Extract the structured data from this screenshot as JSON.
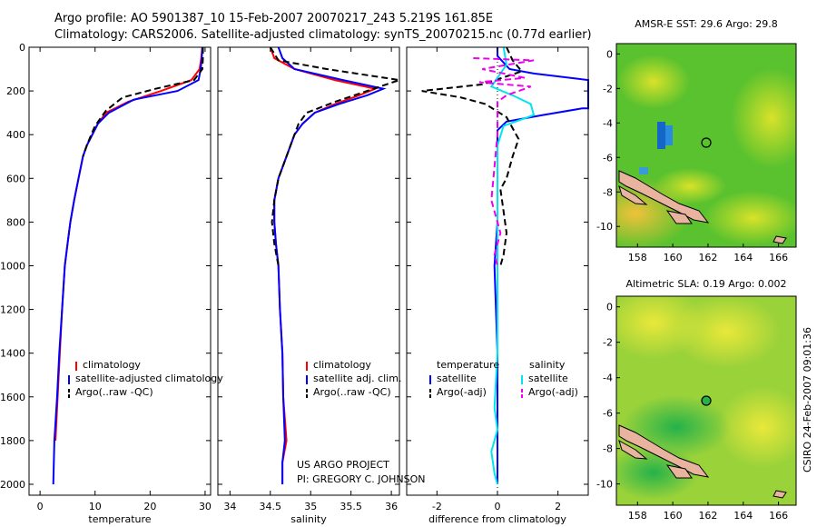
{
  "header": {
    "title_line1": "Argo profile: AO 5901387_10 15-Feb-2007 20070217_243 5.219S 161.85E",
    "title_line2": "Climatology: CARS2006. Satellite-adjusted climatology: synTS_20070215.nc (0.77d earlier)"
  },
  "credits": {
    "project": "US ARGO PROJECT",
    "pi": "PI: GREGORY C. JOHNSON",
    "timestamp": "CSIRO 24-Feb-2007 09:01:36"
  },
  "colors": {
    "climatology": "#ff0000",
    "satellite": "#0000ff",
    "argo": "#000000",
    "salinity_satellite": "#00e5ee",
    "salinity_argo": "#ee00ee"
  },
  "chart_data": [
    {
      "id": "temperature",
      "type": "line",
      "xlabel": "temperature",
      "ylabel": "",
      "xlim": [
        -2,
        31
      ],
      "ylim": [
        2050,
        0
      ],
      "xticks": [
        0,
        10,
        20,
        30
      ],
      "yticks": [
        0,
        200,
        400,
        600,
        800,
        1000,
        1200,
        1400,
        1600,
        1800,
        2000
      ],
      "legend": [
        "climatology",
        "satellite-adjusted climatology",
        "Argo(..raw -QC)"
      ],
      "series": [
        {
          "name": "climatology",
          "style": "solid",
          "colorKey": "climatology",
          "points": [
            [
              29.5,
              0
            ],
            [
              29.3,
              50
            ],
            [
              29,
              100
            ],
            [
              27.5,
              150
            ],
            [
              22,
              200
            ],
            [
              16,
              250
            ],
            [
              12,
              300
            ],
            [
              10.5,
              350
            ],
            [
              9.5,
              400
            ],
            [
              8.5,
              450
            ],
            [
              7.8,
              500
            ],
            [
              7,
              600
            ],
            [
              6.2,
              700
            ],
            [
              5.5,
              800
            ],
            [
              5,
              900
            ],
            [
              4.5,
              1000
            ],
            [
              4,
              1200
            ],
            [
              3.6,
              1400
            ],
            [
              3.2,
              1600
            ],
            [
              2.8,
              1800
            ]
          ]
        },
        {
          "name": "satellite-adjusted climatology",
          "style": "solid",
          "colorKey": "satellite",
          "points": [
            [
              29.5,
              0
            ],
            [
              29.4,
              50
            ],
            [
              29.2,
              100
            ],
            [
              28.8,
              150
            ],
            [
              25,
              200
            ],
            [
              17,
              240
            ],
            [
              12.5,
              300
            ],
            [
              10.5,
              350
            ],
            [
              9.5,
              400
            ],
            [
              8.5,
              450
            ],
            [
              7.8,
              500
            ],
            [
              7,
              600
            ],
            [
              6.2,
              700
            ],
            [
              5.5,
              800
            ],
            [
              5,
              900
            ],
            [
              4.5,
              1000
            ],
            [
              4,
              1200
            ],
            [
              3.5,
              1400
            ],
            [
              3.1,
              1600
            ],
            [
              2.6,
              1800
            ],
            [
              2.4,
              2000
            ]
          ]
        },
        {
          "name": "Argo(..raw -QC)",
          "style": "dashed",
          "colorKey": "argo",
          "points": [
            [
              29.6,
              0
            ],
            [
              29.6,
              50
            ],
            [
              29.5,
              100
            ],
            [
              28,
              150
            ],
            [
              21,
              190
            ],
            [
              15,
              230
            ],
            [
              12,
              290
            ],
            [
              10,
              360
            ],
            [
              9.3,
              400
            ],
            [
              8.5,
              450
            ],
            [
              7.8,
              500
            ]
          ]
        }
      ]
    },
    {
      "id": "salinity",
      "type": "line",
      "xlabel": "salinity",
      "ylabel": "",
      "xlim": [
        33.85,
        36.1
      ],
      "ylim": [
        2050,
        0
      ],
      "xticks": [
        34,
        34.5,
        35,
        35.5,
        36
      ],
      "legend": [
        "climatology",
        "satellite adj. clim.",
        "Argo(..raw -QC)"
      ],
      "series": [
        {
          "name": "climatology",
          "style": "solid",
          "colorKey": "climatology",
          "points": [
            [
              34.5,
              0
            ],
            [
              34.55,
              50
            ],
            [
              34.8,
              100
            ],
            [
              35.3,
              150
            ],
            [
              35.8,
              190
            ],
            [
              35.6,
              220
            ],
            [
              35.3,
              260
            ],
            [
              35.05,
              300
            ],
            [
              34.9,
              350
            ],
            [
              34.8,
              400
            ],
            [
              34.75,
              450
            ],
            [
              34.7,
              500
            ],
            [
              34.6,
              600
            ],
            [
              34.55,
              700
            ],
            [
              34.55,
              800
            ],
            [
              34.57,
              900
            ],
            [
              34.6,
              1000
            ],
            [
              34.62,
              1200
            ],
            [
              34.65,
              1400
            ],
            [
              34.66,
              1600
            ],
            [
              34.7,
              1800
            ],
            [
              34.65,
              1900
            ],
            [
              34.65,
              2000
            ]
          ]
        },
        {
          "name": "satellite adj. clim.",
          "style": "solid",
          "colorKey": "satellite",
          "points": [
            [
              34.6,
              0
            ],
            [
              34.65,
              50
            ],
            [
              34.8,
              100
            ],
            [
              35.4,
              150
            ],
            [
              35.9,
              190
            ],
            [
              35.7,
              220
            ],
            [
              35.35,
              260
            ],
            [
              35.05,
              300
            ],
            [
              34.9,
              350
            ],
            [
              34.8,
              400
            ],
            [
              34.75,
              450
            ],
            [
              34.7,
              500
            ],
            [
              34.6,
              600
            ],
            [
              34.55,
              700
            ],
            [
              34.55,
              800
            ],
            [
              34.57,
              900
            ],
            [
              34.6,
              1000
            ],
            [
              34.62,
              1200
            ],
            [
              34.65,
              1400
            ],
            [
              34.66,
              1600
            ],
            [
              34.68,
              1800
            ],
            [
              34.65,
              1900
            ],
            [
              34.65,
              2000
            ]
          ]
        },
        {
          "name": "Argo(..raw -QC)",
          "style": "dashed",
          "colorKey": "argo",
          "points": [
            [
              34.5,
              0
            ],
            [
              34.6,
              60
            ],
            [
              35.2,
              100
            ],
            [
              36.1,
              150
            ],
            [
              35.7,
              200
            ],
            [
              35.3,
              250
            ],
            [
              34.95,
              300
            ],
            [
              34.85,
              350
            ],
            [
              34.8,
              400
            ],
            [
              34.75,
              450
            ],
            [
              34.7,
              500
            ],
            [
              34.6,
              600
            ],
            [
              34.55,
              700
            ],
            [
              34.52,
              800
            ],
            [
              34.55,
              900
            ],
            [
              34.6,
              1000
            ]
          ]
        }
      ]
    },
    {
      "id": "difference",
      "type": "line",
      "xlabel": "difference from climatology",
      "ylabel": "",
      "xlim": [
        -3,
        3
      ],
      "ylim": [
        2050,
        0
      ],
      "xticks": [
        -2,
        0,
        2
      ],
      "legend_left_title": "temperature",
      "legend_right_title": "salinity",
      "legend_left": [
        "satellite",
        "Argo(-adj)"
      ],
      "legend_right": [
        "satellite",
        "Argo(-adj)"
      ],
      "series": [
        {
          "name": "temperature satellite",
          "style": "solid",
          "colorKey": "satellite",
          "points": [
            [
              0,
              0
            ],
            [
              0,
              40
            ],
            [
              0.4,
              100
            ],
            [
              1.2,
              120
            ],
            [
              3,
              150
            ],
            [
              3,
              280
            ],
            [
              2.8,
              280
            ],
            [
              1.5,
              310
            ],
            [
              0.3,
              340
            ],
            [
              0,
              380
            ],
            [
              0,
              500
            ],
            [
              0,
              800
            ],
            [
              -0.1,
              1000
            ],
            [
              0,
              1400
            ],
            [
              0,
              1800
            ],
            [
              0,
              2000
            ]
          ]
        },
        {
          "name": "temperature Argo(-adj)",
          "style": "dashed",
          "colorKey": "argo",
          "points": [
            [
              0.3,
              0
            ],
            [
              0.5,
              60
            ],
            [
              0.8,
              110
            ],
            [
              -0.5,
              170
            ],
            [
              -2.5,
              200
            ],
            [
              -1.2,
              230
            ],
            [
              -0.4,
              260
            ],
            [
              0.3,
              320
            ],
            [
              0.7,
              420
            ],
            [
              0.5,
              500
            ],
            [
              0.3,
              600
            ],
            [
              0.1,
              650
            ],
            [
              0.2,
              750
            ],
            [
              0.3,
              850
            ],
            [
              0.2,
              950
            ],
            [
              0.1,
              1000
            ]
          ]
        },
        {
          "name": "salinity satellite",
          "style": "solid",
          "colorKey": "salinity_satellite",
          "points": [
            [
              0.2,
              0
            ],
            [
              0.3,
              80
            ],
            [
              -0.2,
              180
            ],
            [
              0.5,
              220
            ],
            [
              1.1,
              260
            ],
            [
              1.2,
              310
            ],
            [
              0.2,
              360
            ],
            [
              0,
              450
            ],
            [
              0,
              600
            ],
            [
              0,
              800
            ],
            [
              0,
              1000
            ],
            [
              0,
              1400
            ],
            [
              -0.1,
              1650
            ],
            [
              0,
              1750
            ],
            [
              -0.2,
              1850
            ],
            [
              -0.1,
              1950
            ],
            [
              0,
              2000
            ]
          ]
        },
        {
          "name": "salinity Argo(-adj)",
          "style": "dashed",
          "colorKey": "salinity_argo",
          "points": [
            [
              -0.8,
              50
            ],
            [
              1.2,
              60
            ],
            [
              -0.5,
              100
            ],
            [
              0.9,
              140
            ],
            [
              -0.6,
              160
            ],
            [
              1.1,
              180
            ],
            [
              0.3,
              220
            ],
            [
              0,
              250
            ],
            [
              0,
              400
            ],
            [
              -0.2,
              700
            ],
            [
              0.1,
              850
            ],
            [
              -0.1,
              950
            ],
            [
              0,
              1000
            ]
          ]
        }
      ]
    },
    {
      "id": "sst_map",
      "type": "heatmap",
      "title": "AMSR-E SST: 29.6  Argo: 29.8",
      "xticks": [
        158,
        160,
        162,
        164,
        166
      ],
      "yticks": [
        0,
        -2,
        -4,
        -6,
        -8,
        -10
      ],
      "xlim": [
        156.8,
        167
      ],
      "ylim": [
        -11.2,
        0.6
      ],
      "argo_position": [
        161.85,
        -5.219
      ]
    },
    {
      "id": "sla_map",
      "type": "heatmap",
      "title": "Altimetric SLA: 0.19  Argo: 0.002",
      "xticks": [
        158,
        160,
        162,
        164,
        166
      ],
      "yticks": [
        0,
        -2,
        -4,
        -6,
        -8,
        -10
      ],
      "xlim": [
        156.8,
        167
      ],
      "ylim": [
        -11.2,
        0.6
      ],
      "argo_position": [
        161.85,
        -5.219
      ]
    }
  ]
}
